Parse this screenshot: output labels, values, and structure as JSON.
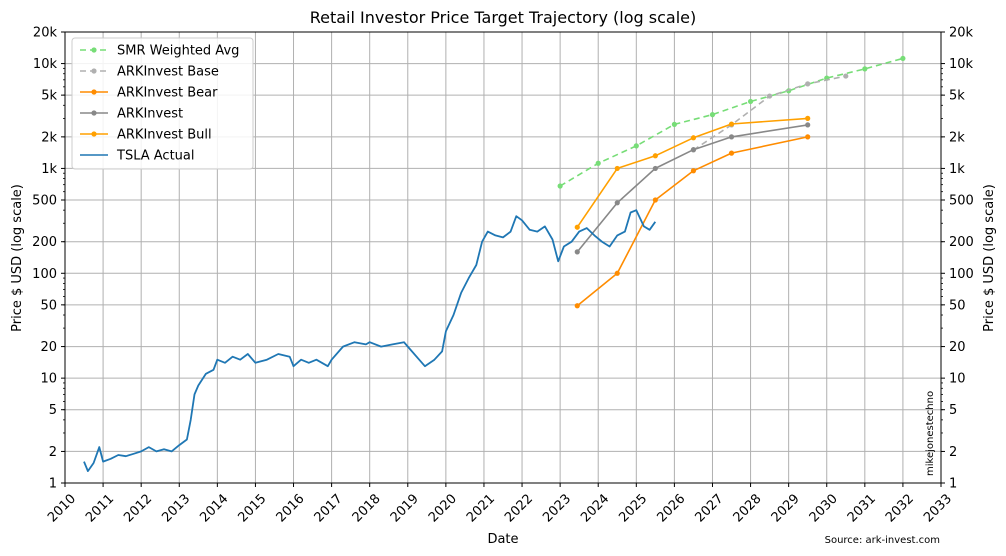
{
  "chart_data": {
    "type": "line",
    "title": "Retail Investor Price Target Trajectory (log scale)",
    "xlabel": "Date",
    "ylabel": "Price $ USD (log scale)",
    "y2label": "Price $ USD (log scale)",
    "yscale": "log",
    "xlim": [
      2010,
      2033
    ],
    "ylim": [
      1,
      20000
    ],
    "grid": true,
    "legend_position": "top-left",
    "x_ticks": [
      "2010",
      "2011",
      "2012",
      "2013",
      "2014",
      "2015",
      "2016",
      "2017",
      "2018",
      "2019",
      "2020",
      "2021",
      "2022",
      "2023",
      "2024",
      "2025",
      "2026",
      "2027",
      "2028",
      "2029",
      "2030",
      "2031",
      "2032",
      "2033"
    ],
    "y_ticks": [
      {
        "value": 1,
        "label": "1"
      },
      {
        "value": 2,
        "label": "2"
      },
      {
        "value": 5,
        "label": "5"
      },
      {
        "value": 10,
        "label": "10"
      },
      {
        "value": 20,
        "label": "20"
      },
      {
        "value": 50,
        "label": "50"
      },
      {
        "value": 100,
        "label": "100"
      },
      {
        "value": 200,
        "label": "200"
      },
      {
        "value": 500,
        "label": "500"
      },
      {
        "value": 1000,
        "label": "1k"
      },
      {
        "value": 2000,
        "label": "2k"
      },
      {
        "value": 5000,
        "label": "5k"
      },
      {
        "value": 10000,
        "label": "10k"
      },
      {
        "value": 20000,
        "label": "20k"
      }
    ],
    "watermark": "mikejonestechno",
    "source_note": "Source: ark-invest.com",
    "series": [
      {
        "name": "SMR Weighted Avg",
        "color": "#77dd77",
        "dashed": true,
        "marker": true,
        "x": [
          2023.0,
          2024.0,
          2025.0,
          2026.0,
          2027.0,
          2028.0,
          2029.0,
          2030.0,
          2031.0,
          2032.0
        ],
        "y": [
          680,
          1120,
          1640,
          2630,
          3260,
          4350,
          5500,
          7260,
          8900,
          11200
        ]
      },
      {
        "name": "ARKInvest Base",
        "color": "#b0b0b0",
        "dashed": true,
        "marker": true,
        "x": [
          2026.5,
          2027.5,
          2028.5,
          2029.5,
          2030.5
        ],
        "y": [
          1500,
          2600,
          4900,
          6400,
          7600
        ]
      },
      {
        "name": "ARKInvest Bear",
        "color": "#ff8c00",
        "dashed": false,
        "marker": true,
        "x": [
          2023.45,
          2024.5,
          2025.5,
          2026.5,
          2027.5,
          2029.5
        ],
        "y": [
          49,
          100,
          500,
          950,
          1400,
          2000
        ]
      },
      {
        "name": "ARKInvest",
        "color": "#888888",
        "dashed": false,
        "marker": true,
        "x": [
          2023.45,
          2024.5,
          2025.5,
          2026.5,
          2027.5,
          2029.5
        ],
        "y": [
          160,
          470,
          1000,
          1510,
          2000,
          2600
        ]
      },
      {
        "name": "ARKInvest Bull",
        "color": "#ffa000",
        "dashed": false,
        "marker": true,
        "x": [
          2023.45,
          2024.5,
          2025.5,
          2026.5,
          2027.5,
          2029.5
        ],
        "y": [
          275,
          1000,
          1320,
          1960,
          2650,
          3000
        ]
      },
      {
        "name": "TSLA Actual",
        "color": "#1f77b4",
        "dashed": false,
        "marker": false,
        "x": [
          2010.5,
          2010.6,
          2010.75,
          2010.9,
          2011.0,
          2011.2,
          2011.4,
          2011.6,
          2011.8,
          2012.0,
          2012.2,
          2012.4,
          2012.6,
          2012.8,
          2013.0,
          2013.2,
          2013.3,
          2013.4,
          2013.5,
          2013.7,
          2013.9,
          2014.0,
          2014.2,
          2014.4,
          2014.6,
          2014.8,
          2015.0,
          2015.3,
          2015.6,
          2015.9,
          2016.0,
          2016.2,
          2016.4,
          2016.6,
          2016.9,
          2017.0,
          2017.3,
          2017.6,
          2017.9,
          2018.0,
          2018.3,
          2018.6,
          2018.9,
          2019.0,
          2019.3,
          2019.45,
          2019.7,
          2019.9,
          2020.0,
          2020.2,
          2020.4,
          2020.6,
          2020.8,
          2020.95,
          2021.1,
          2021.3,
          2021.5,
          2021.7,
          2021.85,
          2022.0,
          2022.2,
          2022.4,
          2022.6,
          2022.8,
          2022.95,
          2023.1,
          2023.3,
          2023.5,
          2023.7,
          2023.9,
          2024.1,
          2024.3,
          2024.5,
          2024.7,
          2024.85,
          2025.0,
          2025.2,
          2025.35,
          2025.5
        ],
        "y": [
          1.6,
          1.3,
          1.55,
          2.2,
          1.6,
          1.7,
          1.85,
          1.8,
          1.9,
          2.0,
          2.2,
          2.0,
          2.1,
          2.0,
          2.3,
          2.6,
          4.0,
          7.0,
          8.5,
          11,
          12,
          15,
          14,
          16,
          15,
          17,
          14,
          15,
          17,
          16,
          13,
          15,
          14,
          15,
          13,
          15,
          20,
          22,
          21,
          22,
          20,
          21,
          22,
          20,
          15,
          13,
          15,
          18,
          28,
          40,
          65,
          90,
          120,
          200,
          250,
          230,
          220,
          250,
          350,
          320,
          260,
          250,
          280,
          210,
          130,
          180,
          200,
          250,
          270,
          230,
          200,
          180,
          230,
          250,
          380,
          400,
          280,
          260,
          310
        ]
      }
    ]
  }
}
